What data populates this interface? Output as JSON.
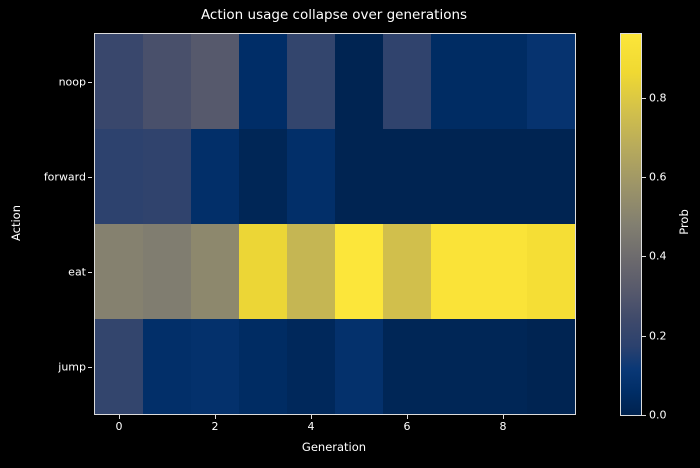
{
  "figure": {
    "background": "#000000",
    "text_color": "#ffffff",
    "spine_color": "#dcdcdc"
  },
  "chart_data": {
    "type": "heatmap",
    "title": "Action usage collapse over generations",
    "xlabel": "Generation",
    "ylabel": "Action",
    "colormap": "cividis",
    "grid": false,
    "x": [
      0,
      1,
      2,
      3,
      4,
      5,
      6,
      7,
      8,
      9
    ],
    "x_range": [
      -0.5,
      9.5
    ],
    "x_tick_values": [
      0,
      2,
      4,
      6,
      8
    ],
    "x_tick_labels": [
      "0",
      "2",
      "4",
      "6",
      "8"
    ],
    "categories_y": [
      "noop",
      "forward",
      "eat",
      "jump"
    ],
    "vmin": 0.0,
    "vmax": 0.96,
    "series": [
      {
        "name": "noop",
        "values": [
          0.22,
          0.27,
          0.31,
          0.06,
          0.2,
          0.01,
          0.19,
          0.05,
          0.05,
          0.09
        ]
      },
      {
        "name": "forward",
        "values": [
          0.18,
          0.19,
          0.07,
          0.02,
          0.07,
          0.01,
          0.01,
          0.01,
          0.01,
          0.01
        ]
      },
      {
        "name": "eat",
        "values": [
          0.49,
          0.47,
          0.52,
          0.85,
          0.72,
          0.96,
          0.76,
          0.94,
          0.94,
          0.9
        ]
      },
      {
        "name": "jump",
        "values": [
          0.2,
          0.07,
          0.08,
          0.05,
          0.03,
          0.08,
          0.02,
          0.02,
          0.02,
          0.01
        ]
      }
    ],
    "colorbar": {
      "label": "Prob",
      "tick_values": [
        0.0,
        0.2,
        0.4,
        0.6,
        0.8
      ],
      "tick_labels": [
        "0.0",
        "0.2",
        "0.4",
        "0.6",
        "0.8"
      ],
      "position": "right"
    },
    "legend": null,
    "colors": {
      "cmap_low": "#00224e",
      "cmap_mid": "#827f70",
      "cmap_high": "#fce63a"
    }
  }
}
